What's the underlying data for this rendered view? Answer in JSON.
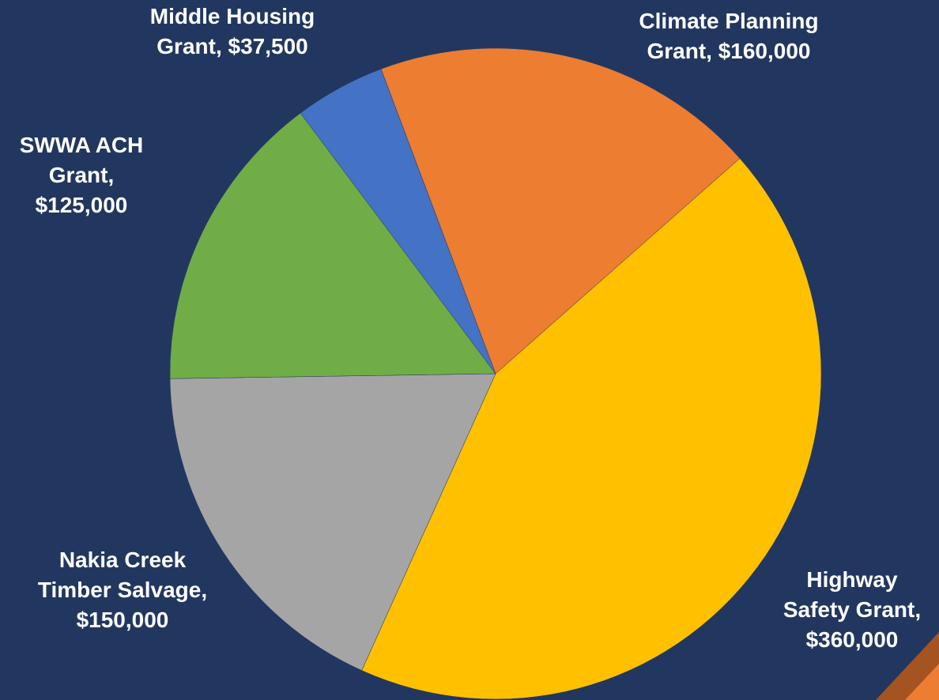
{
  "chart_data": {
    "type": "pie",
    "categories": [
      "Climate Planning Grant,",
      "Highway Safety Grant,",
      "Nakia Creek Timber Salvage,",
      "SWWA ACH Grant,",
      "Middle Housing Grant,"
    ],
    "values": [
      160000,
      360000,
      150000,
      125000,
      37500
    ],
    "value_labels": [
      "$160,000",
      "$360,000",
      "$150,000",
      "$125,000",
      "$37,500"
    ],
    "colors": [
      "#ed7d31",
      "#ffc000",
      "#a5a5a5",
      "#70ad47",
      "#4472c4"
    ]
  }
}
